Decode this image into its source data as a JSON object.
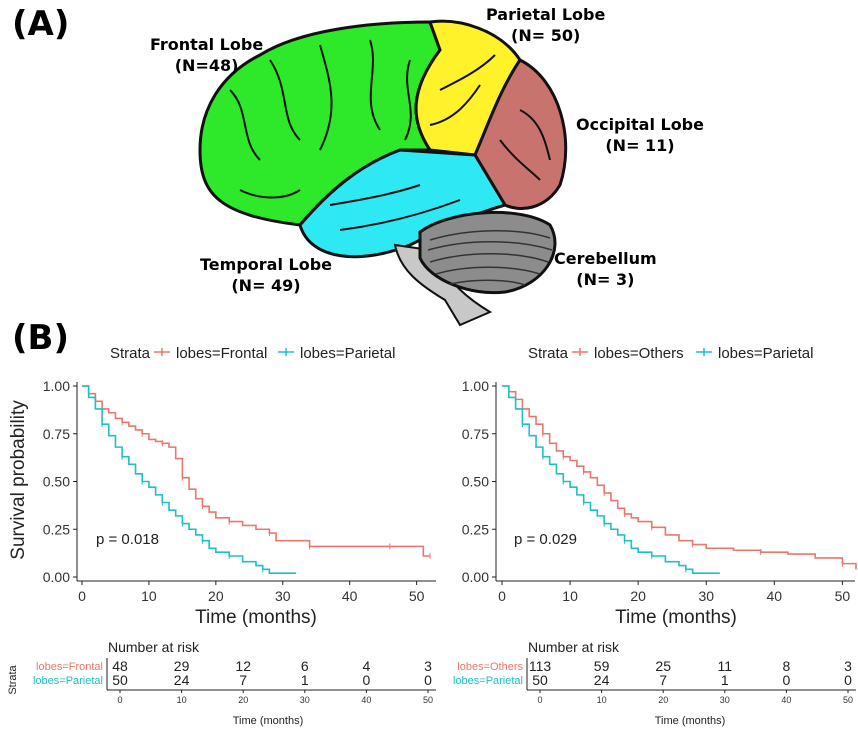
{
  "panel_a": {
    "label": "(A)",
    "lobes": [
      {
        "name": "Frontal Lobe",
        "n": "(N=48)",
        "color": "#2ee82a"
      },
      {
        "name": "Parietal Lobe",
        "n": "(N= 50)",
        "color": "#fff22a"
      },
      {
        "name": "Occipital Lobe",
        "n": "(N= 11)",
        "color": "#c9736e"
      },
      {
        "name": "Temporal Lobe",
        "n": "(N= 49)",
        "color": "#2ee8f4"
      },
      {
        "name": "Cerebellum",
        "n": "(N= 3)",
        "color": "#8c8c8c"
      }
    ]
  },
  "panel_b": {
    "label": "(B)",
    "y_axis_title": "Survival probability",
    "risk_table_strata_label": "Strata"
  },
  "colors": {
    "red": "#e8786f",
    "teal": "#1fbfc4"
  },
  "chart_data": [
    {
      "type": "line",
      "subtype": "kaplan-meier",
      "legend_title": "Strata",
      "legend_position": "top",
      "xlabel": "Time (months)",
      "ylabel": "Survival probability",
      "xlim": [
        0,
        52
      ],
      "ylim": [
        0,
        1
      ],
      "x_ticks": [
        "0",
        "10",
        "20",
        "30",
        "40",
        "50"
      ],
      "y_ticks": [
        "0.00",
        "0.25",
        "0.50",
        "0.75",
        "1.00"
      ],
      "p_value": "p = 0.018",
      "series": [
        {
          "name": "lobes=Frontal",
          "color": "#e8786f",
          "x": [
            0,
            1,
            2,
            3,
            4,
            5,
            6,
            7,
            8,
            9,
            10,
            11,
            12,
            13,
            14,
            15,
            16,
            17,
            18,
            19,
            20,
            22,
            24,
            26,
            28,
            29,
            32,
            34,
            38,
            42,
            46,
            50,
            51,
            52
          ],
          "y": [
            1.0,
            0.96,
            0.92,
            0.88,
            0.86,
            0.83,
            0.81,
            0.79,
            0.77,
            0.75,
            0.72,
            0.71,
            0.7,
            0.68,
            0.62,
            0.52,
            0.46,
            0.41,
            0.37,
            0.34,
            0.31,
            0.29,
            0.27,
            0.25,
            0.23,
            0.19,
            0.19,
            0.16,
            0.16,
            0.16,
            0.16,
            0.16,
            0.11,
            0.11
          ]
        },
        {
          "name": "lobes=Parietal",
          "color": "#1fbfc4",
          "x": [
            0,
            1,
            2,
            3,
            4,
            5,
            6,
            7,
            8,
            9,
            10,
            11,
            12,
            13,
            14,
            15,
            16,
            17,
            18,
            19,
            20,
            22,
            24,
            26,
            27,
            28,
            32
          ],
          "y": [
            1.0,
            0.94,
            0.88,
            0.8,
            0.74,
            0.68,
            0.63,
            0.59,
            0.54,
            0.5,
            0.47,
            0.43,
            0.39,
            0.35,
            0.32,
            0.28,
            0.25,
            0.22,
            0.19,
            0.15,
            0.13,
            0.11,
            0.08,
            0.06,
            0.04,
            0.02,
            0.02
          ]
        }
      ],
      "risk_table": {
        "title": "Number at risk",
        "xlabel": "Time (months)",
        "times": [
          "0",
          "10",
          "20",
          "30",
          "40",
          "50"
        ],
        "rows": [
          {
            "label": "lobes=Frontal",
            "color": "#e8786f",
            "values": [
              "48",
              "29",
              "12",
              "6",
              "4",
              "3"
            ]
          },
          {
            "label": "lobes=Parietal",
            "color": "#1fbfc4",
            "values": [
              "50",
              "24",
              "7",
              "1",
              "0",
              "0"
            ]
          }
        ]
      }
    },
    {
      "type": "line",
      "subtype": "kaplan-meier",
      "legend_title": "Strata",
      "legend_position": "top",
      "xlabel": "Time (months)",
      "ylabel": "",
      "xlim": [
        0,
        52
      ],
      "ylim": [
        0,
        1
      ],
      "x_ticks": [
        "0",
        "10",
        "20",
        "30",
        "40",
        "50"
      ],
      "y_ticks": [
        "0.00",
        "0.25",
        "0.50",
        "0.75",
        "1.00"
      ],
      "p_value": "p = 0.029",
      "series": [
        {
          "name": "lobes=Others",
          "color": "#e8786f",
          "x": [
            0,
            1,
            2,
            3,
            4,
            5,
            6,
            7,
            8,
            9,
            10,
            11,
            12,
            13,
            14,
            15,
            16,
            17,
            18,
            19,
            20,
            22,
            24,
            26,
            28,
            30,
            34,
            38,
            42,
            46,
            50,
            52
          ],
          "y": [
            1.0,
            0.97,
            0.93,
            0.88,
            0.84,
            0.8,
            0.75,
            0.7,
            0.66,
            0.63,
            0.61,
            0.58,
            0.55,
            0.52,
            0.48,
            0.44,
            0.4,
            0.36,
            0.33,
            0.31,
            0.29,
            0.26,
            0.22,
            0.19,
            0.17,
            0.15,
            0.14,
            0.13,
            0.12,
            0.1,
            0.07,
            0.04
          ]
        },
        {
          "name": "lobes=Parietal",
          "color": "#1fbfc4",
          "x": [
            0,
            1,
            2,
            3,
            4,
            5,
            6,
            7,
            8,
            9,
            10,
            11,
            12,
            13,
            14,
            15,
            16,
            17,
            18,
            19,
            20,
            22,
            24,
            26,
            27,
            28,
            32
          ],
          "y": [
            1.0,
            0.94,
            0.88,
            0.8,
            0.74,
            0.68,
            0.63,
            0.59,
            0.54,
            0.5,
            0.47,
            0.43,
            0.39,
            0.35,
            0.32,
            0.28,
            0.25,
            0.22,
            0.19,
            0.15,
            0.13,
            0.11,
            0.08,
            0.06,
            0.04,
            0.02,
            0.02
          ]
        }
      ],
      "risk_table": {
        "title": "Number at risk",
        "xlabel": "Time (months)",
        "times": [
          "0",
          "10",
          "20",
          "30",
          "40",
          "50"
        ],
        "rows": [
          {
            "label": "lobes=Others",
            "color": "#e8786f",
            "values": [
              "113",
              "59",
              "25",
              "11",
              "8",
              "3"
            ]
          },
          {
            "label": "lobes=Parietal",
            "color": "#1fbfc4",
            "values": [
              "50",
              "24",
              "7",
              "1",
              "0",
              "0"
            ]
          }
        ]
      }
    }
  ]
}
